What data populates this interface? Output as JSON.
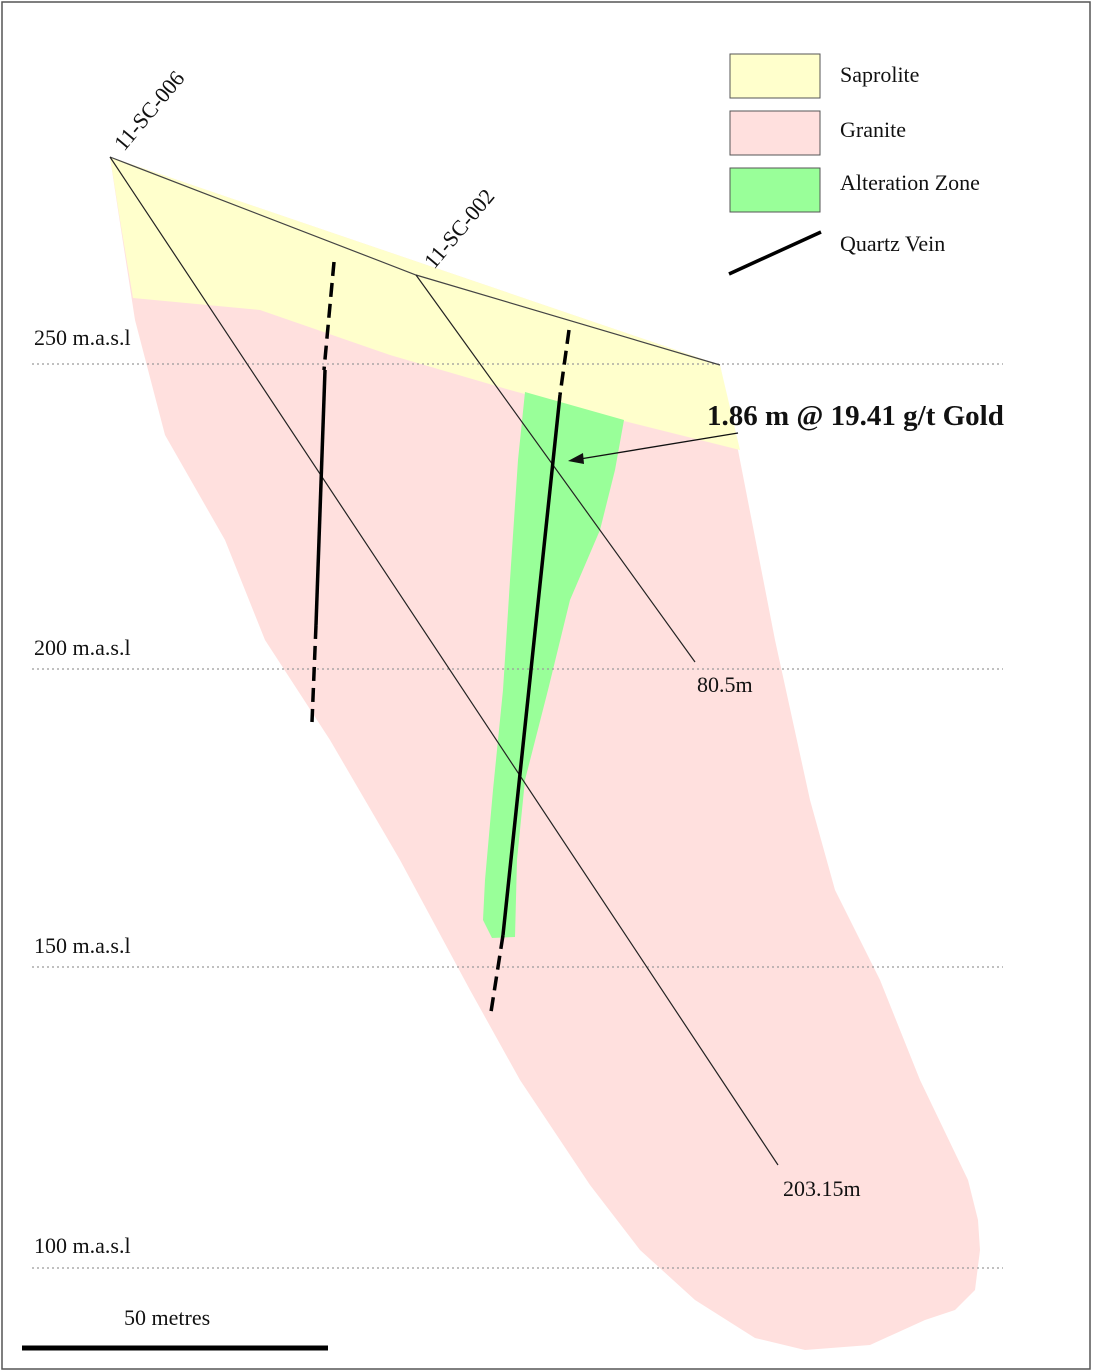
{
  "legend": [
    {
      "label": "Saprolite",
      "swatch": "#ffffcc"
    },
    {
      "label": "Granite",
      "swatch": "#ffe0de"
    },
    {
      "label": "Alteration Zone",
      "swatch": "#99ff99"
    },
    {
      "label": "Quartz Vein",
      "swatch": "line"
    }
  ],
  "elevations": [
    "250 m.a.s.l",
    "200 m.a.s.l",
    "150 m.a.s.l",
    "100 m.a.s.l"
  ],
  "drillholes": [
    {
      "name": "11-SC-006",
      "depth": "203.15m"
    },
    {
      "name": "11-SC-002",
      "depth": "80.5m"
    }
  ],
  "intercept": "1.86 m @ 19.41 g/t Gold",
  "scale_bar": "50 metres",
  "colors": {
    "saprolite": "#ffffcc",
    "granite": "#ffe0de",
    "alteration": "#99ff99",
    "quartz_vein": "#000000",
    "border": "#555555",
    "elevation_line": "#9a9a9a"
  }
}
